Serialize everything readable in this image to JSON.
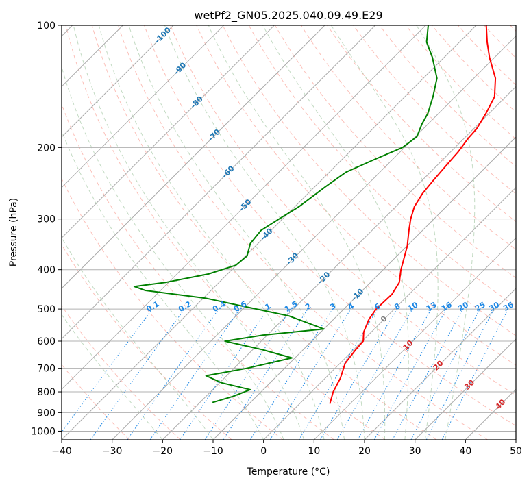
{
  "chart_data": {
    "type": "line",
    "title": "wetPf2_GN05.2025.040.09.49.E29",
    "xlabel": "Temperature (°C)",
    "ylabel": "Pressure (hPa)",
    "xlim": [
      -40,
      50
    ],
    "ylim": [
      1050,
      100
    ],
    "y_scale": "log",
    "grid": true,
    "x_ticks": [
      -40,
      -30,
      -20,
      -10,
      0,
      10,
      20,
      30,
      40,
      50
    ],
    "x_tick_labels": [
      "−40",
      "−30",
      "−20",
      "−10",
      "0",
      "10",
      "20",
      "30",
      "40",
      "50"
    ],
    "y_ticks": [
      100,
      200,
      300,
      400,
      500,
      600,
      700,
      800,
      900,
      1000
    ],
    "y_tick_labels": [
      "100",
      "200",
      "300",
      "400",
      "500",
      "600",
      "700",
      "800",
      "900",
      "1000"
    ],
    "series": [
      {
        "role": "temperature",
        "color": "#ff0000",
        "points": [
          [
            856,
            6.0
          ],
          [
            800,
            4.3
          ],
          [
            740,
            3.0
          ],
          [
            680,
            1.0
          ],
          [
            630,
            0.4
          ],
          [
            600,
            0.2
          ],
          [
            570,
            -1.5
          ],
          [
            530,
            -3.0
          ],
          [
            500,
            -3.6
          ],
          [
            460,
            -3.4
          ],
          [
            430,
            -4.3
          ],
          [
            400,
            -6.5
          ],
          [
            350,
            -9.9
          ],
          [
            320,
            -12.7
          ],
          [
            300,
            -14.6
          ],
          [
            280,
            -16.3
          ],
          [
            260,
            -17.3
          ],
          [
            240,
            -17.8
          ],
          [
            220,
            -18.2
          ],
          [
            205,
            -18.5
          ],
          [
            190,
            -19.2
          ],
          [
            180,
            -19.4
          ],
          [
            165,
            -20.6
          ],
          [
            150,
            -22.2
          ],
          [
            135,
            -25.7
          ],
          [
            120,
            -31.0
          ],
          [
            110,
            -34.5
          ],
          [
            100,
            -38.0
          ]
        ]
      },
      {
        "role": "dewpoint",
        "color": "#008000",
        "points": [
          [
            850,
            -17.5
          ],
          [
            820,
            -14.6
          ],
          [
            790,
            -12.6
          ],
          [
            760,
            -19.6
          ],
          [
            730,
            -24.1
          ],
          [
            700,
            -17.5
          ],
          [
            660,
            -10.6
          ],
          [
            630,
            -18.0
          ],
          [
            600,
            -27.2
          ],
          [
            580,
            -20.9
          ],
          [
            560,
            -10.0
          ],
          [
            520,
            -19.5
          ],
          [
            490,
            -31.4
          ],
          [
            470,
            -39.6
          ],
          [
            450,
            -53.0
          ],
          [
            440,
            -56.0
          ],
          [
            430,
            -50.6
          ],
          [
            410,
            -43.8
          ],
          [
            390,
            -40.1
          ],
          [
            370,
            -39.7
          ],
          [
            345,
            -41.5
          ],
          [
            320,
            -42.0
          ],
          [
            300,
            -40.7
          ],
          [
            280,
            -39.2
          ],
          [
            250,
            -37.9
          ],
          [
            230,
            -36.7
          ],
          [
            215,
            -33.8
          ],
          [
            200,
            -30.4
          ],
          [
            188,
            -29.7
          ],
          [
            175,
            -31.2
          ],
          [
            165,
            -32.1
          ],
          [
            150,
            -34.4
          ],
          [
            135,
            -37.3
          ],
          [
            120,
            -42.3
          ],
          [
            110,
            -46.5
          ],
          [
            100,
            -49.5
          ]
        ]
      }
    ],
    "isotherms": {
      "color": "#aaaaaa",
      "labels": [
        "-100",
        "-90",
        "-80",
        "-70",
        "-60",
        "-50",
        "-40",
        "-30",
        "-20",
        "-10"
      ],
      "label_values": [
        -100,
        -90,
        -80,
        -70,
        -60,
        -50,
        -40,
        -30,
        -20,
        -10
      ],
      "label_color": "#1f77b4"
    },
    "freezing_level_label": {
      "text": "0",
      "color": "#808080"
    },
    "warm_isotherm_labels": {
      "labels": [
        "10",
        "20",
        "30",
        "40"
      ],
      "values": [
        10,
        20,
        30,
        40
      ],
      "color": "#d62728"
    },
    "mixing_ratio_lines": {
      "color": "#1e88e5",
      "labels": [
        "0.1",
        "0.2",
        "0.4",
        "0.6",
        "1",
        "1.5",
        "2",
        "3",
        "4",
        "6",
        "8",
        "10",
        "13",
        "16",
        "20",
        "25",
        "30",
        "36"
      ],
      "values": [
        0.1,
        0.2,
        0.4,
        0.6,
        1,
        1.5,
        2,
        3,
        4,
        6,
        8,
        10,
        13,
        16,
        20,
        25,
        30,
        36
      ]
    },
    "dry_adiabats": {
      "color": "#fa8072",
      "style": "dashed"
    },
    "moist_adiabats": {
      "color": "#8fbc8f",
      "style": "dashed"
    },
    "boundary_curve": {
      "color": "#d2b48c",
      "style": "dashed"
    }
  }
}
